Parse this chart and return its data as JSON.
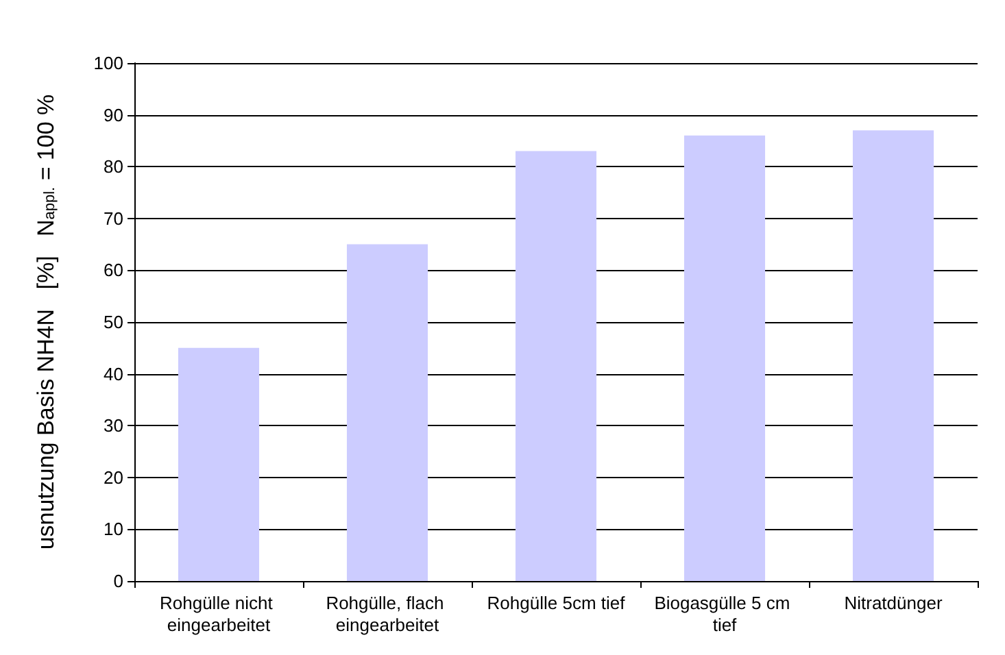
{
  "chart_data": {
    "type": "bar",
    "ylabel": "usnutzung Basis NH4N   [%]   N$_{appl.}$ = 100 %",
    "categories": [
      "Rohgülle nicht eingearbeitet",
      "Rohgülle, flach eingearbeitet",
      "Rohgülle 5cm tief",
      "Biogasgülle 5 cm tief",
      "Nitratdünger"
    ],
    "values": [
      45,
      65,
      83,
      86,
      87
    ],
    "color": "#ccccff",
    "ylim": [
      0,
      100
    ],
    "yticks": [
      0,
      10,
      20,
      30,
      40,
      50,
      60,
      70,
      80,
      90,
      100
    ],
    "grid": "y"
  }
}
